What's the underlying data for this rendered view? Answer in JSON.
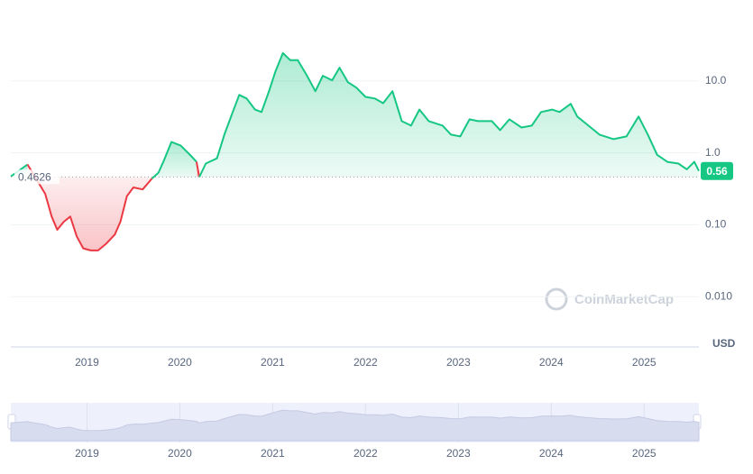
{
  "chart_data": {
    "type": "line",
    "x": [
      2018.18,
      2018.36,
      2018.46,
      2018.55,
      2018.62,
      2018.68,
      2018.75,
      2018.82,
      2018.89,
      2018.96,
      2019.04,
      2019.12,
      2019.21,
      2019.3,
      2019.36,
      2019.43,
      2019.5,
      2019.6,
      2019.7,
      2019.77,
      2019.83,
      2019.91,
      2020.01,
      2020.11,
      2020.18,
      2020.21,
      2020.28,
      2020.4,
      2020.48,
      2020.57,
      2020.64,
      2020.72,
      2020.81,
      2020.88,
      2020.96,
      2021.03,
      2021.11,
      2021.19,
      2021.27,
      2021.37,
      2021.46,
      2021.54,
      2021.64,
      2021.72,
      2021.81,
      2021.9,
      2022.0,
      2022.1,
      2022.19,
      2022.29,
      2022.39,
      2022.49,
      2022.58,
      2022.68,
      2022.83,
      2022.92,
      2023.02,
      2023.12,
      2023.21,
      2023.36,
      2023.45,
      2023.55,
      2023.68,
      2023.79,
      2023.89,
      2024.01,
      2024.09,
      2024.21,
      2024.28,
      2024.4,
      2024.52,
      2024.67,
      2024.81,
      2024.94,
      2025.04,
      2025.14,
      2025.25,
      2025.37,
      2025.46,
      2025.54,
      2025.59
    ],
    "values": [
      0.47,
      0.69,
      0.42,
      0.27,
      0.13,
      0.085,
      0.11,
      0.13,
      0.069,
      0.047,
      0.044,
      0.044,
      0.055,
      0.073,
      0.11,
      0.25,
      0.33,
      0.31,
      0.44,
      0.53,
      0.79,
      1.42,
      1.26,
      0.94,
      0.75,
      0.46,
      0.71,
      0.84,
      1.79,
      3.7,
      6.4,
      5.7,
      4.0,
      3.7,
      7.2,
      13.6,
      24.4,
      19.4,
      19.4,
      11.8,
      7.2,
      11.8,
      10.2,
      15.3,
      9.6,
      8.1,
      6.0,
      5.7,
      4.9,
      7.2,
      2.76,
      2.39,
      4.0,
      2.76,
      2.39,
      1.79,
      1.69,
      2.93,
      2.76,
      2.76,
      2.07,
      2.93,
      2.25,
      2.39,
      3.7,
      4.0,
      3.7,
      4.8,
      3.2,
      2.39,
      1.79,
      1.55,
      1.69,
      3.2,
      1.79,
      0.94,
      0.75,
      0.71,
      0.59,
      0.75,
      0.56
    ],
    "baseline": 0.4626,
    "up_color": "#16c784",
    "down_color": "#ea3943",
    "log_y": true,
    "xlim": [
      2018.18,
      2025.59
    ],
    "xticks": [
      2019,
      2020,
      2021,
      2022,
      2023,
      2024,
      2025
    ],
    "ylim": [
      0.002,
      100
    ],
    "yticks": [
      {
        "value": 10,
        "label": "10.0"
      },
      {
        "value": 1,
        "label": "1.0"
      },
      {
        "value": 0.1,
        "label": "0.10"
      },
      {
        "value": 0.01,
        "label": "0.010"
      }
    ],
    "grid": true,
    "currency": "USD",
    "watermark": "CoinMarketCap"
  }
}
